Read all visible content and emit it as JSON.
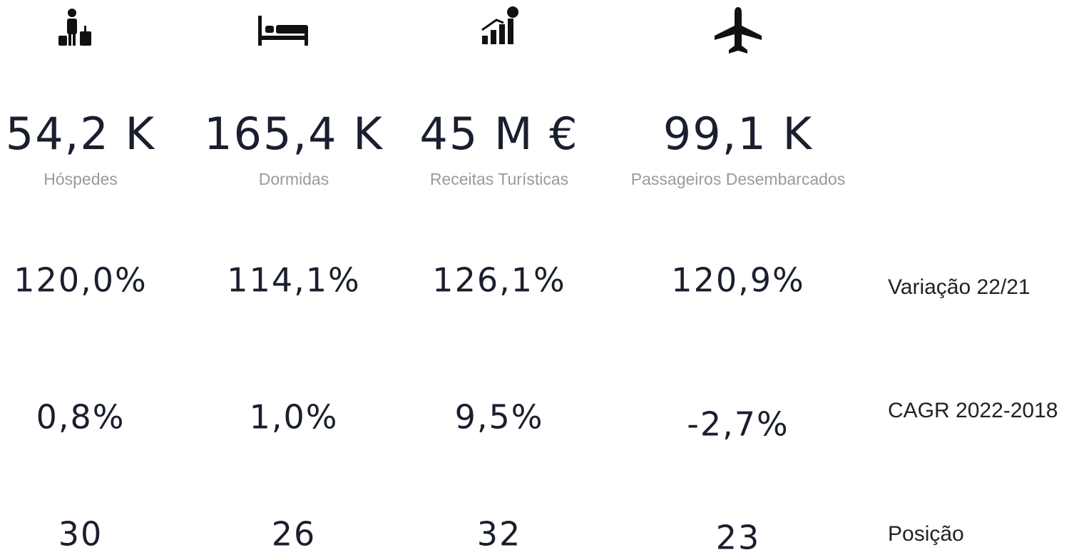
{
  "kpis": [
    {
      "value": "54,2 K",
      "label": "Hóspedes",
      "variation": "120,0%",
      "cagr": "0,8%",
      "position": "30"
    },
    {
      "value": "165,4 K",
      "label": "Dormidas",
      "variation": "114,1%",
      "cagr": "1,0%",
      "position": "26"
    },
    {
      "value": "45 M €",
      "label": "Receitas Turísticas",
      "variation": "126,1%",
      "cagr": "9,5%",
      "position": "32"
    },
    {
      "value": "99,1 K",
      "label": "Passageiros Desembarcados",
      "variation": "120,9%",
      "cagr": "-2,7%",
      "position": "23"
    }
  ],
  "row_labels": {
    "variation": "Variação 22/21",
    "cagr": "CAGR 2022-2018",
    "position": "Posição"
  }
}
